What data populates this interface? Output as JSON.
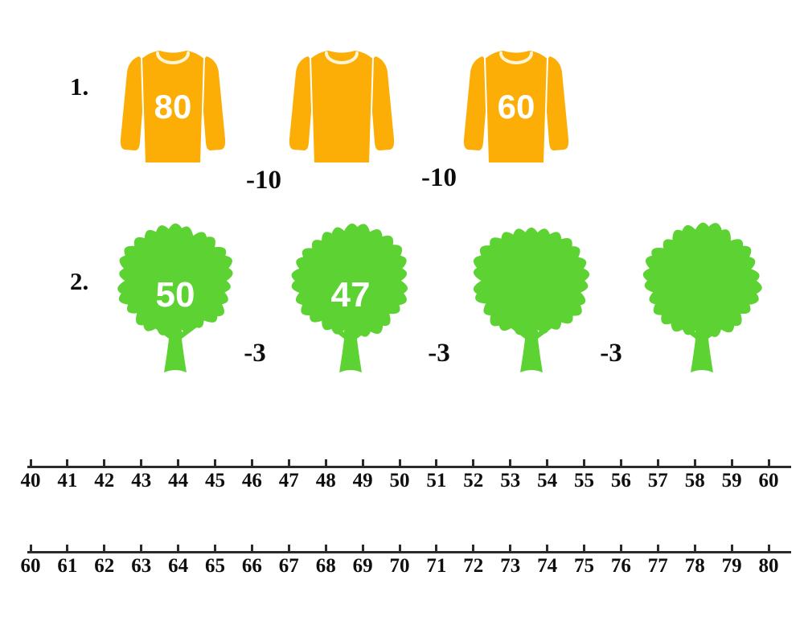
{
  "worksheet": {
    "problems": [
      {
        "label": "1.",
        "shape": "sweater",
        "shape_color": "#FCAD06",
        "collar_color": "#FFF5D4",
        "operator_text": "-10",
        "items": [
          {
            "value": "80"
          },
          {
            "value": ""
          },
          {
            "value": "60"
          }
        ],
        "operators": [
          "-10",
          "-10"
        ]
      },
      {
        "label": "2.",
        "shape": "tree",
        "shape_color": "#5CD333",
        "operator_text": "-3",
        "items": [
          {
            "value": "50"
          },
          {
            "value": "47"
          },
          {
            "value": ""
          },
          {
            "value": ""
          }
        ],
        "operators": [
          "-3",
          "-3",
          "-3"
        ]
      }
    ],
    "number_lines": [
      {
        "start": 40,
        "end": 60,
        "labels": [
          "40",
          "41",
          "42",
          "43",
          "44",
          "45",
          "46",
          "47",
          "48",
          "49",
          "50",
          "51",
          "52",
          "53",
          "54",
          "55",
          "56",
          "57",
          "58",
          "59",
          "60"
        ]
      },
      {
        "start": 60,
        "end": 80,
        "labels": [
          "60",
          "61",
          "62",
          "63",
          "64",
          "65",
          "66",
          "67",
          "68",
          "69",
          "70",
          "71",
          "72",
          "73",
          "74",
          "75",
          "76",
          "77",
          "78",
          "79",
          "80"
        ]
      }
    ]
  }
}
